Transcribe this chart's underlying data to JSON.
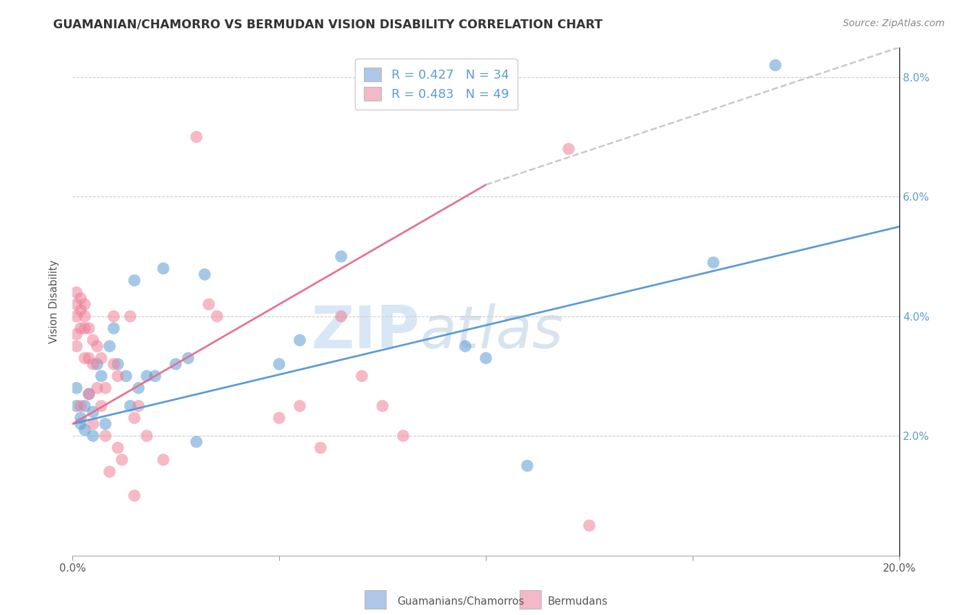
{
  "title": "GUAMANIAN/CHAMORRO VS BERMUDAN VISION DISABILITY CORRELATION CHART",
  "source": "Source: ZipAtlas.com",
  "ylabel": "Vision Disability",
  "watermark": "ZIPatlas",
  "legend_1_label": "Guamanians/Chamorros",
  "legend_1_R": "0.427",
  "legend_1_N": "34",
  "legend_1_color": "#aec6e8",
  "legend_2_label": "Bermudans",
  "legend_2_R": "0.483",
  "legend_2_N": "49",
  "legend_2_color": "#f4b8c8",
  "blue_color": "#5b9bd5",
  "pink_color": "#f08098",
  "trend_blue": "#5b9bd5",
  "trend_pink": "#e87090",
  "trend_dashed_color": "#c8c8c8",
  "x_min": 0.0,
  "x_max": 0.2,
  "y_min": 0.0,
  "y_max": 0.085,
  "y_ticks": [
    0.02,
    0.04,
    0.06,
    0.08
  ],
  "y_tick_labels": [
    "2.0%",
    "4.0%",
    "6.0%",
    "8.0%"
  ],
  "x_tick_positions": [
    0.0,
    0.05,
    0.1,
    0.15,
    0.2
  ],
  "x_tick_labels_show": [
    "0.0%",
    "",
    "",
    "",
    "20.0%"
  ],
  "blue_scatter_x": [
    0.001,
    0.001,
    0.002,
    0.002,
    0.003,
    0.003,
    0.004,
    0.005,
    0.005,
    0.006,
    0.007,
    0.008,
    0.009,
    0.01,
    0.011,
    0.013,
    0.014,
    0.015,
    0.016,
    0.018,
    0.02,
    0.022,
    0.025,
    0.028,
    0.03,
    0.032,
    0.05,
    0.055,
    0.065,
    0.095,
    0.1,
    0.11,
    0.155,
    0.17
  ],
  "blue_scatter_y": [
    0.028,
    0.025,
    0.023,
    0.022,
    0.025,
    0.021,
    0.027,
    0.024,
    0.02,
    0.032,
    0.03,
    0.022,
    0.035,
    0.038,
    0.032,
    0.03,
    0.025,
    0.046,
    0.028,
    0.03,
    0.03,
    0.048,
    0.032,
    0.033,
    0.019,
    0.047,
    0.032,
    0.036,
    0.05,
    0.035,
    0.033,
    0.015,
    0.049,
    0.082
  ],
  "pink_scatter_x": [
    0.001,
    0.001,
    0.001,
    0.001,
    0.001,
    0.002,
    0.002,
    0.002,
    0.002,
    0.003,
    0.003,
    0.003,
    0.003,
    0.004,
    0.004,
    0.004,
    0.005,
    0.005,
    0.005,
    0.006,
    0.006,
    0.007,
    0.007,
    0.008,
    0.008,
    0.009,
    0.01,
    0.01,
    0.011,
    0.011,
    0.012,
    0.014,
    0.015,
    0.015,
    0.016,
    0.018,
    0.022,
    0.03,
    0.033,
    0.035,
    0.05,
    0.055,
    0.06,
    0.065,
    0.07,
    0.075,
    0.08,
    0.12,
    0.125
  ],
  "pink_scatter_y": [
    0.044,
    0.042,
    0.04,
    0.037,
    0.035,
    0.043,
    0.041,
    0.038,
    0.025,
    0.042,
    0.04,
    0.038,
    0.033,
    0.038,
    0.033,
    0.027,
    0.036,
    0.032,
    0.022,
    0.035,
    0.028,
    0.033,
    0.025,
    0.028,
    0.02,
    0.014,
    0.04,
    0.032,
    0.03,
    0.018,
    0.016,
    0.04,
    0.023,
    0.01,
    0.025,
    0.02,
    0.016,
    0.07,
    0.042,
    0.04,
    0.023,
    0.025,
    0.018,
    0.04,
    0.03,
    0.025,
    0.02,
    0.068,
    0.005
  ],
  "blue_trend_x": [
    0.0,
    0.2
  ],
  "blue_trend_y": [
    0.022,
    0.055
  ],
  "pink_trend_x": [
    0.0,
    0.1
  ],
  "pink_trend_y": [
    0.022,
    0.062
  ],
  "dashed_trend_x": [
    0.1,
    0.2
  ],
  "dashed_trend_y": [
    0.062,
    0.085
  ]
}
